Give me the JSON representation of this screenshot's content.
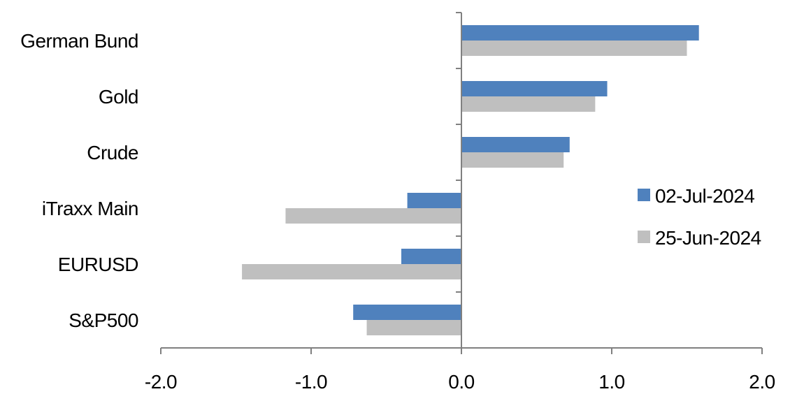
{
  "chart_data": {
    "type": "bar",
    "orientation": "horizontal",
    "categories": [
      "German Bund",
      "Gold",
      "Crude",
      "iTraxx Main",
      "EURUSD",
      "S&P500"
    ],
    "series": [
      {
        "name": "02-Jul-2024",
        "color": "#4F81BD",
        "values": [
          1.58,
          0.97,
          0.72,
          -0.36,
          -0.4,
          -0.72
        ]
      },
      {
        "name": "25-Jun-2024",
        "color": "#BFBFBF",
        "values": [
          1.5,
          0.89,
          0.68,
          -1.17,
          -1.46,
          -0.63
        ]
      }
    ],
    "xlim": [
      -2.0,
      2.0
    ],
    "xticks": [
      "-2.0",
      "-1.0",
      "0.0",
      "1.0",
      "2.0"
    ],
    "title": "",
    "xlabel": "",
    "ylabel": "",
    "grid": false,
    "legend": "right"
  }
}
